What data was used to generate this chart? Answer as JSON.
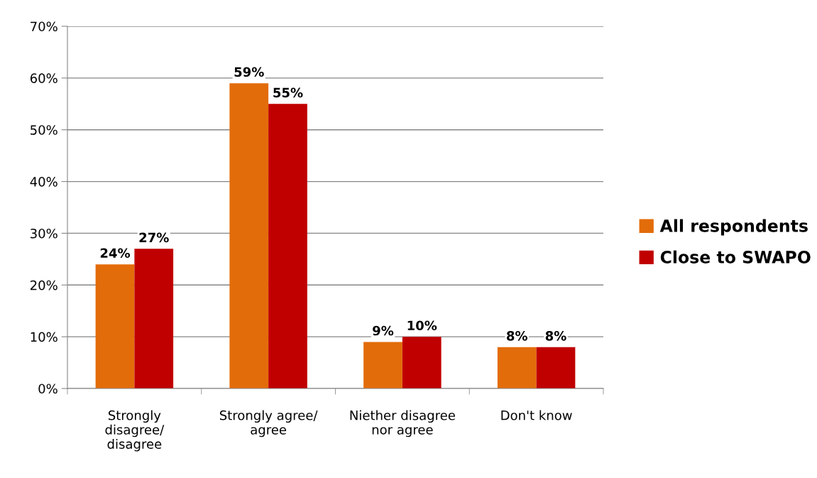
{
  "chart_data": {
    "type": "bar",
    "categories": [
      "Strongly\ndisagree/\ndisagree",
      "Strongly agree/\nagree",
      "Niether disagree\nnor agree",
      "Don't know"
    ],
    "series": [
      {
        "name": "All respondents",
        "color": "#e36c0a",
        "values": [
          24,
          59,
          9,
          8
        ],
        "value_labels": [
          "24%",
          "59%",
          "9%",
          "8%"
        ]
      },
      {
        "name": "Close to SWAPO",
        "color": "#c00000",
        "values": [
          27,
          55,
          10,
          8
        ],
        "value_labels": [
          "27%",
          "55%",
          "10%",
          "8%"
        ]
      }
    ],
    "ylim": [
      0,
      70
    ],
    "yticks": [
      {
        "value": 0,
        "label": "0%"
      },
      {
        "value": 10,
        "label": "10%"
      },
      {
        "value": 20,
        "label": "20%"
      },
      {
        "value": 30,
        "label": "30%"
      },
      {
        "value": 40,
        "label": "40%"
      },
      {
        "value": 50,
        "label": "50%"
      },
      {
        "value": 60,
        "label": "60%"
      },
      {
        "value": 70,
        "label": "70%"
      }
    ],
    "grid": "y",
    "legend": "right"
  }
}
